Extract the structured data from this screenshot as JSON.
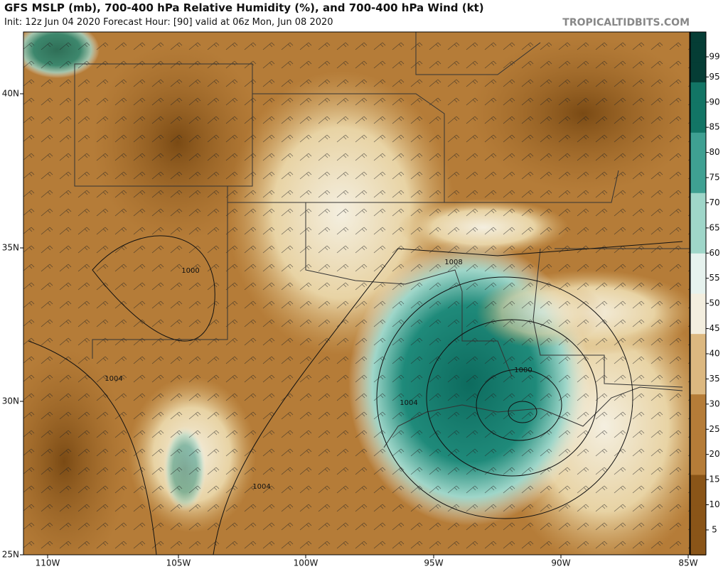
{
  "header": {
    "title": "GFS MSLP (mb), 700-400 hPa Relative Humidity (%), and 700-400 hPa Wind (kt)",
    "subtitle": "Init: 12z Jun 04 2020   Forecast Hour: [90]   valid at 06z Mon, Jun 08 2020",
    "credit": "TROPICALTIDBITS.COM"
  },
  "map": {
    "lat_labels": [
      "40N",
      "35N",
      "30N",
      "25N"
    ],
    "lon_labels": [
      "110W",
      "105W",
      "100W",
      "95W",
      "90W",
      "85W"
    ],
    "isobar_labels": [
      "1000",
      "1004",
      "1008",
      "1000",
      "1004",
      "1004"
    ]
  },
  "colorbar": {
    "ticks": [
      5,
      10,
      15,
      20,
      25,
      30,
      35,
      40,
      45,
      50,
      55,
      60,
      65,
      70,
      75,
      80,
      85,
      90,
      95,
      99
    ]
  }
}
